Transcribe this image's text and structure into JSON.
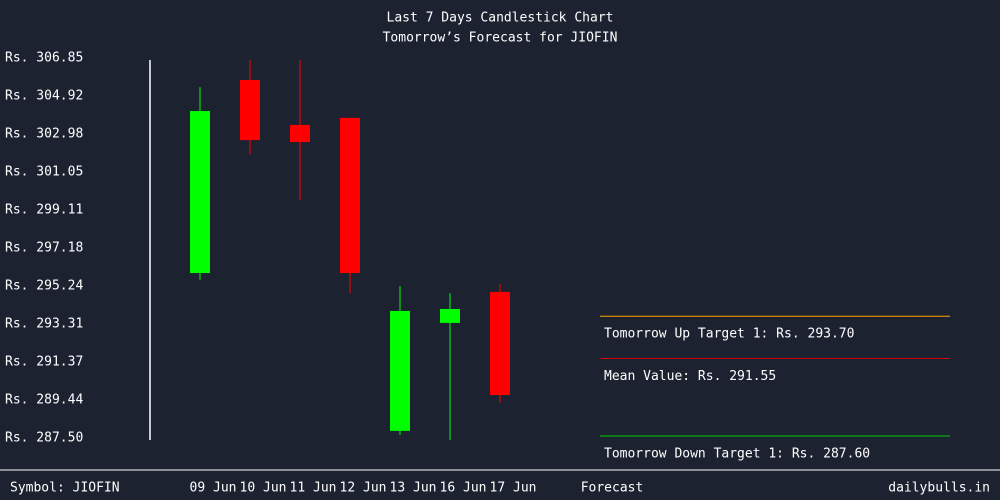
{
  "chart_data": {
    "type": "candlestick",
    "title": "Last 7 Days Candlestick Chart",
    "subtitle": "Tomorrow’s Forecast for JIOFIN",
    "categories": [
      "09 Jun",
      "10 Jun",
      "11 Jun",
      "12 Jun",
      "13 Jun",
      "16 Jun",
      "17 Jun"
    ],
    "open": [
      295.9,
      305.73,
      303.44,
      303.8,
      287.86,
      293.36,
      294.94
    ],
    "high": [
      305.37,
      306.75,
      306.75,
      303.8,
      295.24,
      294.88,
      295.34
    ],
    "low": [
      295.55,
      301.96,
      299.62,
      294.88,
      287.65,
      287.4,
      289.28
    ],
    "close": [
      304.15,
      302.67,
      302.57,
      295.9,
      293.97,
      294.07,
      289.69
    ],
    "up_color": "#00ff00",
    "down_color": "#ff0000",
    "ylim": [
      287.5,
      306.85
    ],
    "yticks": [
      {
        "value": 306.85,
        "label": "Rs. 306.85"
      },
      {
        "value": 304.92,
        "label": "Rs. 304.92"
      },
      {
        "value": 302.98,
        "label": "Rs. 302.98"
      },
      {
        "value": 301.05,
        "label": "Rs. 301.05"
      },
      {
        "value": 299.11,
        "label": "Rs. 299.11"
      },
      {
        "value": 297.18,
        "label": "Rs. 297.18"
      },
      {
        "value": 295.24,
        "label": "Rs. 295.24"
      },
      {
        "value": 293.31,
        "label": "Rs. 293.31"
      },
      {
        "value": 291.37,
        "label": "Rs. 291.37"
      },
      {
        "value": 289.44,
        "label": "Rs. 289.44"
      },
      {
        "value": 287.5,
        "label": "Rs. 287.50"
      }
    ],
    "forecast_label": "Forecast",
    "forecast": [
      {
        "label": "Tomorrow Up Target 1: Rs. 293.70",
        "value": 293.7,
        "color": "#ffa500"
      },
      {
        "label": "Mean Value: Rs. 291.55",
        "value": 291.55,
        "color": "#cc0000"
      },
      {
        "label": "Tomorrow Down Target 1: Rs. 287.60",
        "value": 287.6,
        "color": "#00cc00"
      }
    ],
    "symbol": "Symbol: JIOFIN",
    "source": "dailybulls.in"
  }
}
